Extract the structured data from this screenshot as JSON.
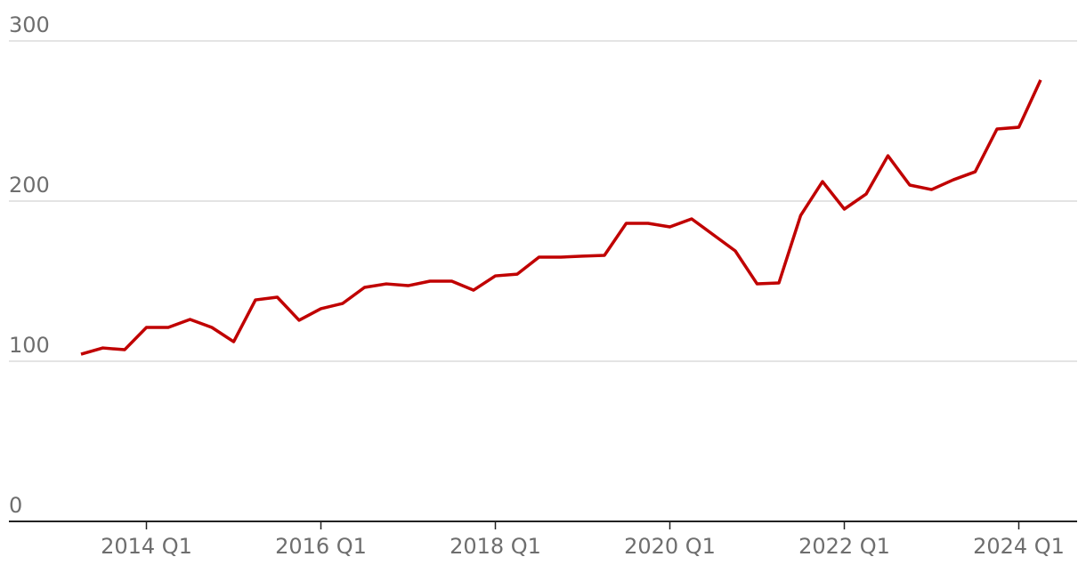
{
  "chart_data": {
    "type": "line",
    "categories": [
      null,
      null,
      null,
      "2014 Q1",
      null,
      null,
      null,
      null,
      null,
      null,
      null,
      "2016 Q1",
      null,
      null,
      null,
      null,
      null,
      null,
      null,
      "2018 Q1",
      null,
      null,
      null,
      null,
      null,
      null,
      null,
      "2020 Q1",
      null,
      null,
      null,
      null,
      null,
      null,
      null,
      "2022 Q1",
      null,
      null,
      null,
      null,
      null,
      null,
      null,
      "2024 Q1",
      null
    ],
    "series": [
      {
        "color": "#c00000",
        "values": [
          104.4,
          108.3,
          107.2,
          121.1,
          121.1,
          126.1,
          121.1,
          112.2,
          138.3,
          140,
          125.6,
          132.8,
          136.1,
          146.1,
          148.3,
          147.2,
          150,
          150,
          144.4,
          153.3,
          154.4,
          165,
          165,
          165.6,
          166.1,
          186.1,
          186.1,
          183.9,
          188.9,
          178.9,
          168.9,
          148.3,
          148.9,
          191.1,
          212.2,
          195,
          204.4,
          228.3,
          210,
          207.2,
          213.3,
          218.3,
          245,
          246.1,
          275.6
        ]
      }
    ],
    "ylim": [
      0,
      300
    ],
    "yticks": [
      0,
      100,
      200,
      300
    ],
    "grid": true
  }
}
